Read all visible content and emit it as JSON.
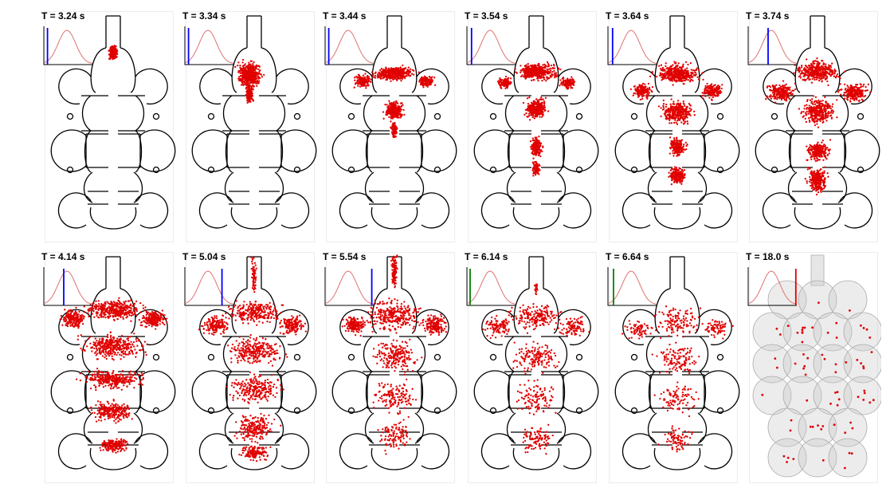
{
  "panels": [
    {
      "time_label": "T =  3.24 s",
      "marker_color": "#0000ff",
      "style": "outline"
    },
    {
      "time_label": "T =  3.34 s",
      "marker_color": "#0000ff",
      "style": "outline"
    },
    {
      "time_label": "T =  3.44 s",
      "marker_color": "#0000ff",
      "style": "outline"
    },
    {
      "time_label": "T =  3.54 s",
      "marker_color": "#0000ff",
      "style": "outline"
    },
    {
      "time_label": "T =  3.64 s",
      "marker_color": "#0000ff",
      "style": "outline"
    },
    {
      "time_label": "T =  3.74 s",
      "marker_color": "#0000ff",
      "style": "outline"
    },
    {
      "time_label": "T = 4.14 s",
      "marker_color": "#0000ff",
      "style": "outline"
    },
    {
      "time_label": "T = 5.04 s",
      "marker_color": "#0000ff",
      "style": "outline"
    },
    {
      "time_label": "T = 5.54 s",
      "marker_color": "#0000ff",
      "style": "outline"
    },
    {
      "time_label": "T = 6.14 s",
      "marker_color": "#008000",
      "style": "outline"
    },
    {
      "time_label": "T = 6.64 s",
      "marker_color": "#008000",
      "style": "outline"
    },
    {
      "time_label": "T = 18.0 s",
      "marker_color": "#e00000",
      "style": "3d"
    }
  ],
  "colors": {
    "particle": "#e00000",
    "pulse_curve": "#e07070",
    "outline": "#000000",
    "sphere_fill": "#c8c8c8"
  }
}
